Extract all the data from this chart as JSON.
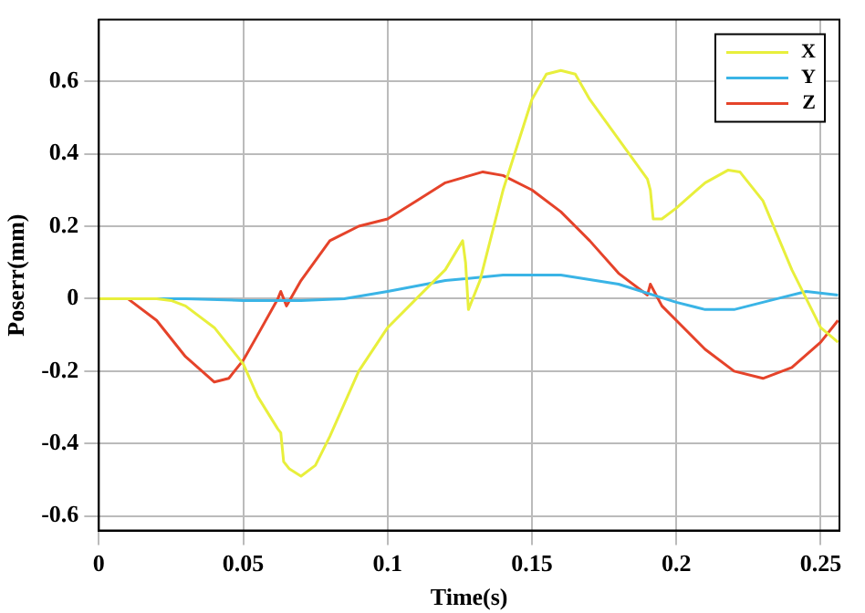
{
  "chart_data": {
    "type": "line",
    "xlabel": "Time(s)",
    "ylabel": "Poserr(mm)",
    "xlim": [
      0,
      0.2565
    ],
    "ylim": [
      -0.64,
      0.77
    ],
    "xticks": [
      0,
      0.05,
      0.1,
      0.15,
      0.2,
      0.25
    ],
    "yticks": [
      -0.6,
      -0.4,
      -0.2,
      0,
      0.2,
      0.4,
      0.6
    ],
    "grid": true,
    "legend": "top right",
    "marker": "none",
    "line_style": "solid",
    "series": [
      {
        "name": "X",
        "color": "#e8ef3c",
        "x": [
          0,
          0.01,
          0.02,
          0.025,
          0.03,
          0.04,
          0.05,
          0.055,
          0.062,
          0.063,
          0.064,
          0.066,
          0.07,
          0.075,
          0.08,
          0.09,
          0.1,
          0.11,
          0.12,
          0.126,
          0.127,
          0.128,
          0.132,
          0.14,
          0.15,
          0.155,
          0.16,
          0.165,
          0.17,
          0.18,
          0.19,
          0.191,
          0.192,
          0.195,
          0.2,
          0.21,
          0.218,
          0.222,
          0.23,
          0.24,
          0.25,
          0.256
        ],
        "values": [
          0,
          0,
          0,
          -0.005,
          -0.02,
          -0.08,
          -0.18,
          -0.27,
          -0.36,
          -0.37,
          -0.45,
          -0.47,
          -0.49,
          -0.46,
          -0.38,
          -0.2,
          -0.08,
          0,
          0.08,
          0.16,
          0.1,
          -0.03,
          0.05,
          0.3,
          0.55,
          0.62,
          0.63,
          0.62,
          0.55,
          0.44,
          0.33,
          0.3,
          0.22,
          0.22,
          0.25,
          0.32,
          0.355,
          0.35,
          0.27,
          0.08,
          -0.08,
          -0.12
        ]
      },
      {
        "name": "Y",
        "color": "#3ab4e6",
        "x": [
          0,
          0.03,
          0.05,
          0.07,
          0.085,
          0.1,
          0.12,
          0.14,
          0.16,
          0.18,
          0.2,
          0.21,
          0.22,
          0.235,
          0.245,
          0.256
        ],
        "values": [
          0,
          0,
          -0.005,
          -0.005,
          0,
          0.02,
          0.05,
          0.065,
          0.065,
          0.04,
          -0.01,
          -0.03,
          -0.03,
          0,
          0.02,
          0.01
        ]
      },
      {
        "name": "Z",
        "color": "#e5432a",
        "x": [
          0,
          0.01,
          0.02,
          0.03,
          0.04,
          0.045,
          0.05,
          0.055,
          0.062,
          0.063,
          0.065,
          0.07,
          0.08,
          0.09,
          0.1,
          0.11,
          0.12,
          0.133,
          0.14,
          0.15,
          0.16,
          0.17,
          0.18,
          0.19,
          0.191,
          0.195,
          0.2,
          0.21,
          0.22,
          0.23,
          0.24,
          0.25,
          0.256
        ],
        "values": [
          0,
          0,
          -0.06,
          -0.16,
          -0.23,
          -0.22,
          -0.17,
          -0.1,
          0,
          0.02,
          -0.02,
          0.05,
          0.16,
          0.2,
          0.22,
          0.27,
          0.32,
          0.35,
          0.34,
          0.3,
          0.24,
          0.16,
          0.07,
          0.01,
          0.04,
          -0.02,
          -0.06,
          -0.14,
          -0.2,
          -0.22,
          -0.19,
          -0.12,
          -0.06
        ]
      }
    ]
  }
}
